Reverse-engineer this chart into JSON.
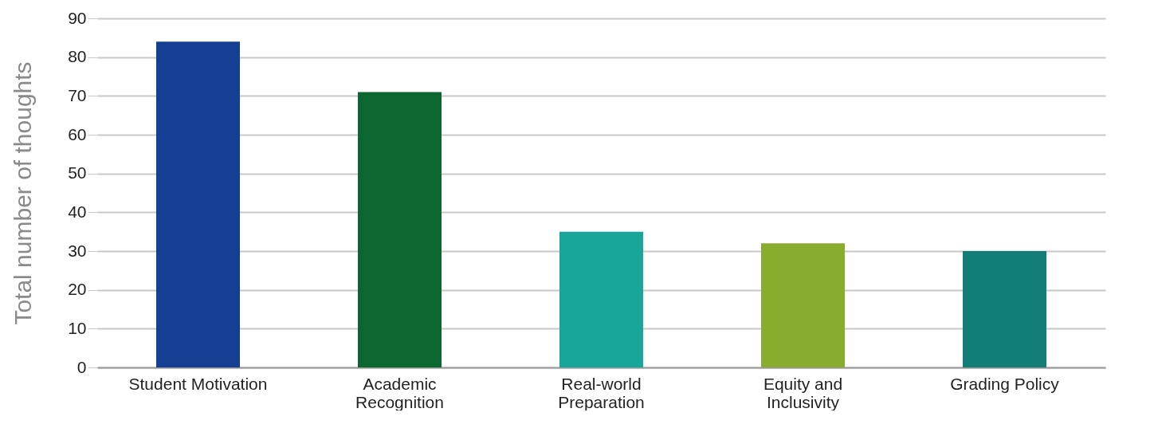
{
  "chart_data": {
    "type": "bar",
    "ylabel": "Total number of thoughts",
    "categories": [
      "Student Motivation",
      "Academic Recognition",
      "Real-world Preparation",
      "Equity and Inclusivity",
      "Grading Policy"
    ],
    "values": [
      84,
      71,
      35,
      32,
      30
    ],
    "colors": [
      "#143f93",
      "#0b6630",
      "#19a69a",
      "#88ad2e",
      "#137e77"
    ],
    "ylim": [
      0,
      90
    ],
    "yticks": [
      0,
      10,
      20,
      30,
      40,
      50,
      60,
      70,
      80,
      90
    ],
    "grid": "y"
  }
}
